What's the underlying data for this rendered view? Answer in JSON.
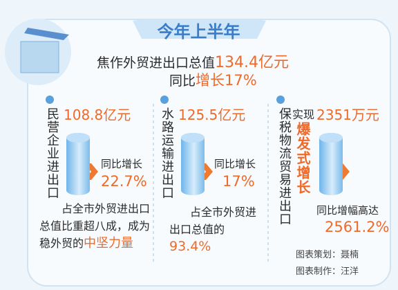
{
  "header": {
    "title": "今年上半年",
    "line1_prefix": "焦作外贸进出口总值",
    "line1_value": "134.4亿元",
    "line2_prefix": "同比",
    "line2_highlight": "增长17%"
  },
  "panels": [
    {
      "label": "民营企业进出口",
      "amount": "108.8亿元",
      "growth_label": "同比增长",
      "growth": "22.7%",
      "note": "占全市外贸进出口总值比重超八成，成为稳外贸的",
      "note_highlight": "中坚力量"
    },
    {
      "label": "水路运输进出口",
      "amount": "125.5亿元",
      "growth_label": "同比增长",
      "growth": "17%",
      "note": "占全市外贸进出口总值的",
      "note_highlight": "93.4%"
    },
    {
      "label": "保税物流贸易进出口",
      "amount_prefix": "实现",
      "highlight": "爆发式增长",
      "amount": "2351万元",
      "growth_label": "同比增幅高达",
      "growth": "2561.2%"
    }
  ],
  "credits": [
    "图表策划：聂楠",
    "图表制作：汪洋"
  ]
}
